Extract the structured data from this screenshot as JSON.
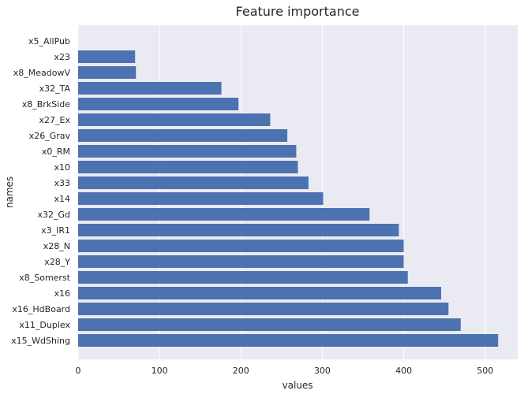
{
  "colors": {
    "plot_background": "#eaeaf2",
    "grid": "#ffffff",
    "bar": "#4c72b0",
    "text": "#262626"
  },
  "chart_data": {
    "type": "bar",
    "orientation": "horizontal",
    "title": "Feature importance",
    "xlabel": "values",
    "ylabel": "names",
    "xlim": [
      0,
      540
    ],
    "x_ticks": [
      0,
      100,
      200,
      300,
      400,
      500
    ],
    "grid": "vertical",
    "categories": [
      "x15_WdShing",
      "x11_Duplex",
      "x16_HdBoard",
      "x16",
      "x8_Somerst",
      "x28_Y",
      "x28_N",
      "x3_IR1",
      "x32_Gd",
      "x14",
      "x33",
      "x10",
      "x0_RM",
      "x26_Grav",
      "x27_Ex",
      "x8_BrkSide",
      "x32_TA",
      "x8_MeadowV",
      "x23",
      "x5_AllPub"
    ],
    "values": [
      516,
      470,
      455,
      446,
      405,
      400,
      400,
      394,
      358,
      301,
      283,
      270,
      268,
      257,
      236,
      197,
      176,
      71,
      70,
      0
    ]
  }
}
